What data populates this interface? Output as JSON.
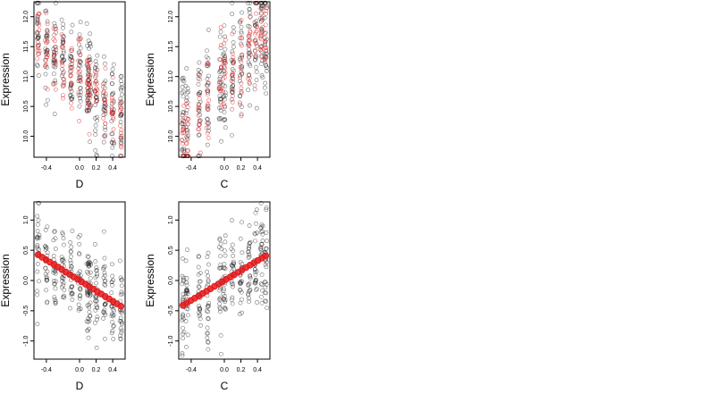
{
  "figure": {
    "panels": [
      {
        "ylabel": "Expression",
        "xlabel": "D"
      },
      {
        "ylabel": "Expression",
        "xlabel": "C"
      },
      {
        "ylabel": "Expression",
        "xlabel": "D"
      },
      {
        "ylabel": "Expression",
        "xlabel": "C"
      }
    ]
  },
  "chart_data": [
    {
      "type": "scatter",
      "xlabel": "D",
      "ylabel": "Expression",
      "xlim": [
        -0.55,
        0.55
      ],
      "ylim": [
        9.65,
        12.25
      ],
      "xticks": [
        -0.4,
        0.0,
        0.2,
        0.4
      ],
      "xtick_labels": [
        "-0.4",
        "0.0",
        "0.2",
        "0.4"
      ],
      "yticks": [
        10.0,
        10.5,
        11.0,
        11.5,
        12.0
      ],
      "ytick_labels": [
        "10.0",
        "10.5",
        "11.0",
        "11.5",
        "12.0"
      ],
      "x_levels": [
        -0.5,
        -0.4,
        -0.3,
        -0.2,
        -0.1,
        0.0,
        0.1,
        0.12,
        0.2,
        0.3,
        0.4,
        0.5
      ],
      "series": [
        {
          "marker": "open-circle",
          "color": "#000000",
          "kind": "observed",
          "slope": -1.2,
          "intercept": 10.95,
          "spread": 0.45,
          "n_per_level": 25
        },
        {
          "marker": "open-circle",
          "color": "#e41a1c",
          "kind": "fitted",
          "slope": -1.2,
          "intercept": 11.0,
          "spread": 0.32,
          "n_per_level": 14
        }
      ],
      "grid": false
    },
    {
      "type": "scatter",
      "xlabel": "C",
      "ylabel": "Expression",
      "xlim": [
        -0.55,
        0.55
      ],
      "ylim": [
        9.65,
        12.25
      ],
      "xticks": [
        -0.4,
        0.0,
        0.2,
        0.4
      ],
      "xtick_labels": [
        "-0.4",
        "0.0",
        "0.2",
        "0.4"
      ],
      "yticks": [
        10.0,
        10.5,
        11.0,
        11.5,
        12.0
      ],
      "ytick_labels": [
        "10.0",
        "10.5",
        "11.0",
        "11.5",
        "12.0"
      ],
      "x_levels": [
        -0.5,
        -0.45,
        -0.3,
        -0.2,
        -0.05,
        0.0,
        0.1,
        0.2,
        0.3,
        0.38,
        0.45,
        0.5
      ],
      "series": [
        {
          "marker": "open-circle",
          "color": "#000000",
          "kind": "observed",
          "slope": 1.6,
          "intercept": 10.95,
          "spread": 0.5,
          "n_per_level": 25
        },
        {
          "marker": "open-circle",
          "color": "#e41a1c",
          "kind": "fitted",
          "slope": 1.6,
          "intercept": 10.95,
          "spread": 0.35,
          "n_per_level": 14
        }
      ],
      "grid": false
    },
    {
      "type": "scatter",
      "xlabel": "D",
      "ylabel": "Expression",
      "xlim": [
        -0.55,
        0.55
      ],
      "ylim": [
        -1.3,
        1.3
      ],
      "xticks": [
        -0.4,
        0.0,
        0.2,
        0.4
      ],
      "xtick_labels": [
        "-0.4",
        "0.0",
        "0.2",
        "0.4"
      ],
      "yticks": [
        -1.0,
        -0.5,
        0.0,
        0.5,
        1.0
      ],
      "ytick_labels": [
        "-1.0",
        "-0.5",
        "0.0",
        "0.5",
        "1.0"
      ],
      "x_levels": [
        -0.5,
        -0.4,
        -0.3,
        -0.2,
        -0.1,
        0.0,
        0.1,
        0.12,
        0.2,
        0.3,
        0.4,
        0.5
      ],
      "series": [
        {
          "marker": "open-circle",
          "color": "#000000",
          "kind": "residual",
          "slope": -0.85,
          "intercept": 0.0,
          "spread": 0.38,
          "n_per_level": 25
        },
        {
          "marker": "filled-circle",
          "color": "#e41a1c",
          "kind": "fit-line",
          "slope": -0.85,
          "intercept": 0.0,
          "spread": 0.0,
          "n_per_level": 22
        }
      ],
      "grid": false
    },
    {
      "type": "scatter",
      "xlabel": "C",
      "ylabel": "Expression",
      "xlim": [
        -0.55,
        0.55
      ],
      "ylim": [
        -1.3,
        1.3
      ],
      "xticks": [
        -0.4,
        0.0,
        0.2,
        0.4
      ],
      "xtick_labels": [
        "-0.4",
        "0.0",
        "0.2",
        "0.4"
      ],
      "yticks": [
        -1.0,
        -0.5,
        0.0,
        0.5,
        1.0
      ],
      "ytick_labels": [
        "-1.0",
        "-0.5",
        "0.0",
        "0.5",
        "1.0"
      ],
      "x_levels": [
        -0.5,
        -0.45,
        -0.3,
        -0.2,
        -0.05,
        0.0,
        0.1,
        0.2,
        0.3,
        0.38,
        0.45,
        0.5
      ],
      "series": [
        {
          "marker": "open-circle",
          "color": "#000000",
          "kind": "residual",
          "slope": 0.82,
          "intercept": 0.0,
          "spread": 0.4,
          "n_per_level": 25
        },
        {
          "marker": "filled-circle",
          "color": "#e41a1c",
          "kind": "fit-line",
          "slope": 0.82,
          "intercept": 0.0,
          "spread": 0.0,
          "n_per_level": 22
        }
      ],
      "grid": false
    }
  ]
}
